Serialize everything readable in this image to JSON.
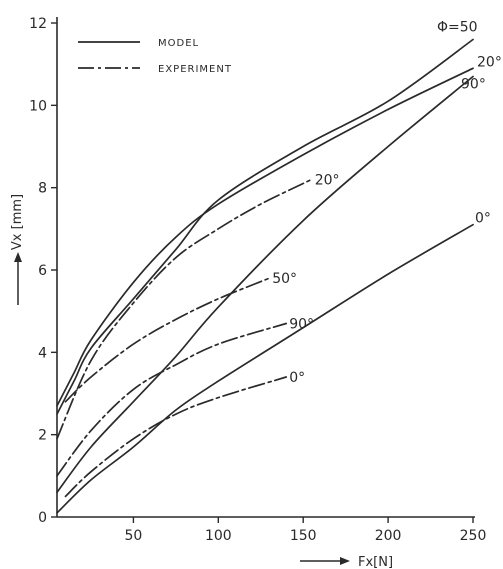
{
  "chart_data": {
    "type": "line",
    "title": "",
    "xlabel": "Fx[N]",
    "ylabel": "Vx [mm]",
    "xlim": [
      0,
      250
    ],
    "ylim": [
      0,
      12
    ],
    "x_ticks": [
      "50",
      "100",
      "150",
      "200",
      "250"
    ],
    "y_ticks": [
      "0",
      "2",
      "4",
      "6",
      "8",
      "10",
      "12"
    ],
    "grid": false,
    "legend": {
      "placement": "top-left",
      "entries": [
        {
          "label": "MODEL",
          "style": "solid"
        },
        {
          "label": "EXPERIMENT",
          "style": "dash-dot"
        }
      ]
    },
    "series": [
      {
        "label": "Φ=50",
        "style": "solid",
        "color": "#2a2a2a",
        "points": [
          [
            5,
            2.5
          ],
          [
            15,
            3.3
          ],
          [
            25,
            4.1
          ],
          [
            50,
            5.3
          ],
          [
            75,
            6.5
          ],
          [
            100,
            7.7
          ],
          [
            150,
            9.0
          ],
          [
            200,
            10.1
          ],
          [
            250,
            11.6
          ]
        ]
      },
      {
        "label": "20°",
        "style": "solid",
        "color": "#2a2a2a",
        "points": [
          [
            5,
            2.7
          ],
          [
            15,
            3.5
          ],
          [
            25,
            4.3
          ],
          [
            50,
            5.7
          ],
          [
            75,
            6.8
          ],
          [
            100,
            7.6
          ],
          [
            150,
            8.8
          ],
          [
            200,
            9.9
          ],
          [
            250,
            10.9
          ]
        ]
      },
      {
        "label": "90°",
        "style": "solid",
        "color": "#2a2a2a",
        "points": [
          [
            5,
            0.6
          ],
          [
            25,
            1.7
          ],
          [
            50,
            2.8
          ],
          [
            75,
            3.9
          ],
          [
            100,
            5.1
          ],
          [
            150,
            7.2
          ],
          [
            200,
            9.0
          ],
          [
            250,
            10.7
          ]
        ]
      },
      {
        "label": "0°",
        "style": "solid",
        "color": "#2a2a2a",
        "points": [
          [
            5,
            0.1
          ],
          [
            25,
            0.9
          ],
          [
            50,
            1.7
          ],
          [
            75,
            2.6
          ],
          [
            100,
            3.3
          ],
          [
            150,
            4.6
          ],
          [
            200,
            5.9
          ],
          [
            250,
            7.1
          ]
        ]
      },
      {
        "label": "20°",
        "style": "dash-dot",
        "color": "#2a2a2a",
        "points": [
          [
            5,
            1.9
          ],
          [
            25,
            3.8
          ],
          [
            50,
            5.2
          ],
          [
            75,
            6.3
          ],
          [
            100,
            7.0
          ],
          [
            125,
            7.6
          ],
          [
            155,
            8.2
          ]
        ]
      },
      {
        "label": "50°",
        "style": "dash-dot",
        "color": "#2a2a2a",
        "points": [
          [
            10,
            2.8
          ],
          [
            25,
            3.4
          ],
          [
            50,
            4.2
          ],
          [
            75,
            4.8
          ],
          [
            100,
            5.3
          ],
          [
            130,
            5.8
          ]
        ]
      },
      {
        "label": "90°",
        "style": "dash-dot",
        "color": "#2a2a2a",
        "points": [
          [
            5,
            1.0
          ],
          [
            25,
            2.1
          ],
          [
            50,
            3.1
          ],
          [
            75,
            3.7
          ],
          [
            100,
            4.2
          ],
          [
            140,
            4.7
          ]
        ]
      },
      {
        "label": "0°",
        "style": "dash-dot",
        "color": "#2a2a2a",
        "points": [
          [
            10,
            0.5
          ],
          [
            25,
            1.1
          ],
          [
            50,
            1.9
          ],
          [
            75,
            2.5
          ],
          [
            100,
            2.9
          ],
          [
            140,
            3.4
          ]
        ]
      }
    ]
  }
}
